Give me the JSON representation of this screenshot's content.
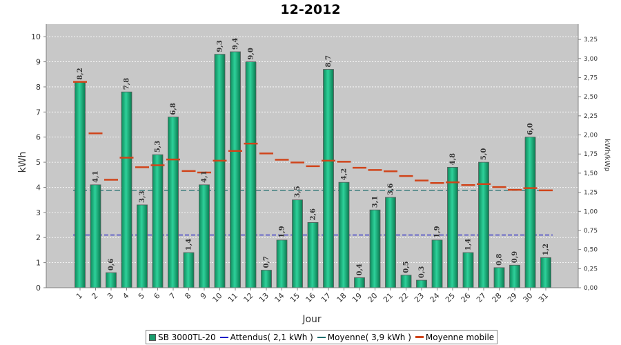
{
  "title": "12-2012",
  "chart_data": {
    "type": "bar",
    "title": "12-2012",
    "xlabel": "Jour",
    "ylabel": "kWh",
    "y2label": "kWh/kWp",
    "ylim": [
      0,
      10.5
    ],
    "y2lim": [
      0,
      3.45
    ],
    "y_ticks": [
      "0",
      "1",
      "2",
      "3",
      "4",
      "5",
      "6",
      "7",
      "8",
      "9",
      "10"
    ],
    "y2_ticks": [
      "0,00",
      "0,25",
      "0,50",
      "0,75",
      "1,00",
      "1,25",
      "1,50",
      "1,75",
      "2,00",
      "2,25",
      "2,50",
      "2,75",
      "3,00",
      "3,25"
    ],
    "categories": [
      "1",
      "2",
      "3",
      "4",
      "5",
      "6",
      "7",
      "8",
      "9",
      "10",
      "11",
      "12",
      "13",
      "14",
      "15",
      "16",
      "17",
      "18",
      "19",
      "20",
      "21",
      "22",
      "23",
      "24",
      "25",
      "26",
      "27",
      "28",
      "29",
      "30",
      "31"
    ],
    "series": [
      {
        "name": "SB 3000TL-20",
        "kind": "bar",
        "color": "#1a9e6e",
        "values": [
          8.2,
          4.1,
          0.6,
          7.8,
          3.3,
          5.3,
          6.8,
          1.4,
          4.1,
          9.3,
          9.4,
          9.0,
          0.7,
          1.9,
          3.5,
          2.6,
          8.7,
          4.2,
          0.4,
          3.1,
          3.6,
          0.5,
          0.3,
          1.9,
          4.8,
          1.4,
          5.0,
          0.8,
          0.9,
          6.0,
          1.2
        ],
        "labels": [
          "8,2",
          "4,1",
          "0,6",
          "7,8",
          "3,3",
          "5,3",
          "6,8",
          "1,4",
          "4,1",
          "9,3",
          "9,4",
          "9,0",
          "0,7",
          "1,9",
          "3,5",
          "2,6",
          "8,7",
          "4,2",
          "0,4",
          "3,1",
          "3,6",
          "0,5",
          "0,3",
          "1,9",
          "4,8",
          "1,4",
          "5,0",
          "0,8",
          "0,9",
          "6,0",
          "1,2"
        ]
      },
      {
        "name": "Moyenne mobile",
        "kind": "step",
        "color": "#d0441a",
        "values": [
          8.2,
          6.15,
          4.3,
          5.18,
          4.8,
          4.88,
          5.11,
          4.65,
          4.59,
          5.06,
          5.45,
          5.74,
          5.35,
          5.1,
          4.99,
          4.84,
          5.06,
          5.02,
          4.78,
          4.69,
          4.64,
          4.45,
          4.27,
          4.17,
          4.2,
          4.09,
          4.13,
          4.01,
          3.9,
          3.97,
          3.88
        ]
      }
    ],
    "reference_lines": [
      {
        "name": "Attendus( 2,1 kWh )",
        "value": 2.1,
        "color": "#1c1cc8"
      },
      {
        "name": "Moyenne( 3,9 kWh )",
        "value": 3.88,
        "color": "#1e6e6e"
      }
    ]
  },
  "legend": {
    "items": [
      {
        "label": "SB 3000TL-20",
        "color": "#1a9e6e",
        "kind": "box"
      },
      {
        "label": "Attendus( 2,1 kWh )",
        "color": "#1c1cc8",
        "kind": "line"
      },
      {
        "label": "Moyenne( 3,9 kWh )",
        "color": "#1e6e6e",
        "kind": "line"
      },
      {
        "label": "Moyenne mobile",
        "color": "#d0441a",
        "kind": "thick-line"
      }
    ]
  }
}
